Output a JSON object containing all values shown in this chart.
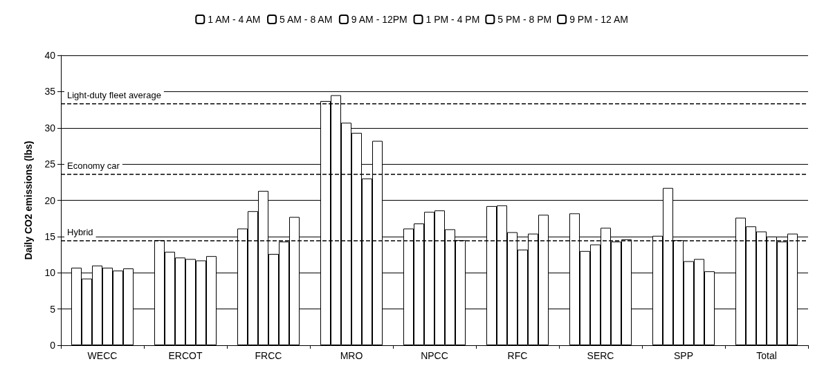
{
  "chart_data": {
    "type": "bar",
    "ylabel": "Daily CO2 emissions (lbs)",
    "categories": [
      "WECC",
      "ERCOT",
      "FRCC",
      "MRO",
      "NPCC",
      "RFC",
      "SERC",
      "SPP",
      "Total"
    ],
    "series": [
      {
        "name": "1 AM - 4 AM",
        "color": "#ffffff",
        "values": [
          10.7,
          14.5,
          16.1,
          33.7,
          16.1,
          19.2,
          18.2,
          15.1,
          17.6
        ]
      },
      {
        "name": "5 AM - 8 AM",
        "color": "#ffffff",
        "values": [
          9.2,
          12.9,
          18.5,
          34.5,
          16.8,
          19.3,
          13.0,
          21.7,
          16.4
        ]
      },
      {
        "name": "9 AM - 12PM",
        "color": "#ffffff",
        "values": [
          11.0,
          12.1,
          21.3,
          30.7,
          18.4,
          15.6,
          13.9,
          14.5,
          15.7
        ]
      },
      {
        "name": "1 PM - 4 PM",
        "color": "#ffffff",
        "values": [
          10.7,
          11.9,
          12.6,
          29.3,
          18.6,
          13.2,
          16.2,
          11.6,
          15.0
        ]
      },
      {
        "name": "5 PM - 8 PM",
        "color": "#ffffff",
        "values": [
          10.3,
          11.7,
          14.3,
          23.0,
          16.0,
          15.4,
          14.3,
          11.9,
          14.3
        ]
      },
      {
        "name": "9 PM - 12 AM",
        "color": "#ffffff",
        "values": [
          10.6,
          12.3,
          17.7,
          28.2,
          14.5,
          18.0,
          14.6,
          10.2,
          15.4
        ]
      }
    ],
    "ylim": [
      0,
      40
    ],
    "yticks": [
      0,
      5,
      10,
      15,
      20,
      25,
      30,
      35,
      40
    ],
    "grid": "y",
    "legend": "top",
    "ref_lines": [
      {
        "axis": "y",
        "value": 33.3,
        "label": "Light-duty fleet average",
        "line_style": "dashed"
      },
      {
        "axis": "y",
        "value": 23.6,
        "label": "Economy car",
        "line_style": "dashed"
      },
      {
        "axis": "y",
        "value": 14.4,
        "label": "Hybrid",
        "line_style": "dashed"
      }
    ]
  }
}
